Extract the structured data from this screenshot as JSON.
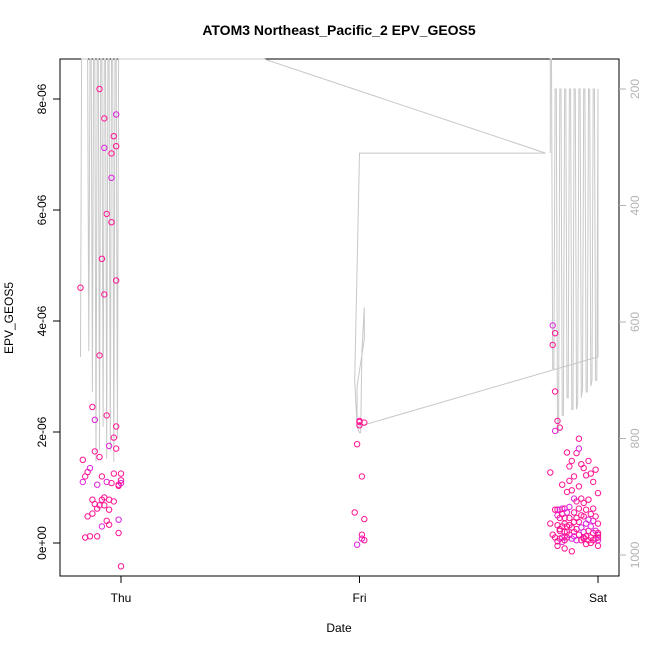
{
  "chart_data": {
    "type": "scatter",
    "title": "ATOM3 Northeast_Pacific_2 EPV_GEOS5",
    "xlabel": "Date",
    "ylabel": "EPV_GEOS5",
    "x_ticks": [
      "Thu",
      "Fri",
      "Sat"
    ],
    "y_ticks": [
      "0e+00",
      "2e-06",
      "4e-06",
      "6e-06",
      "8e-06"
    ],
    "y2_ticks": [
      "200",
      "400",
      "600",
      "800",
      "1000"
    ],
    "ylim": [
      -5.6e-07,
      8.6e-06
    ],
    "y2lim": [
      1020,
      140
    ],
    "y2_reversed": true,
    "grid": false,
    "colors": {
      "points": "#ff1493",
      "points_alt": "#dd22dd",
      "line": "#c8c8c8",
      "axis": "#000000",
      "axis2": "#b3b3b3"
    },
    "points_x_note_unit": "days after Thu 00:00",
    "series": [
      {
        "type": "points",
        "x": [
          -0.17,
          -0.16,
          -0.16,
          -0.15,
          -0.15,
          -0.14,
          -0.14,
          -0.13,
          -0.13,
          -0.12,
          -0.12,
          -0.12,
          -0.11,
          -0.11,
          -0.11,
          -0.1,
          -0.1,
          -0.1,
          -0.09,
          -0.09,
          -0.09,
          -0.09,
          -0.08,
          -0.08,
          -0.08,
          -0.08,
          -0.07,
          -0.07,
          -0.07,
          -0.07,
          -0.07,
          -0.06,
          -0.06,
          -0.06,
          -0.06,
          -0.05,
          -0.05,
          -0.05,
          -0.05,
          -0.04,
          -0.04,
          -0.04,
          -0.04,
          -0.03,
          -0.03,
          -0.03,
          -0.03,
          -0.02,
          -0.02,
          -0.02,
          -0.02,
          -0.02,
          -0.01,
          -0.01,
          -0.01,
          -0.01,
          0.0,
          0.0,
          0.0,
          0.0
        ],
        "y": [
          4.6e-06,
          1.5e-06,
          1.1e-06,
          1.2e-06,
          1e-07,
          4.8e-07,
          1.28e-06,
          1.35e-06,
          1.2e-07,
          2.45e-06,
          5.3e-07,
          7.8e-07,
          2.22e-06,
          7e-07,
          1.65e-06,
          6.2e-07,
          1.2e-07,
          1.05e-06,
          3.38e-06,
          6.8e-07,
          1.55e-06,
          8.18e-06,
          3e-07,
          1.2e-06,
          5.12e-06,
          7.8e-07,
          7.65e-06,
          7.12e-06,
          4.48e-06,
          8.2e-07,
          6.8e-07,
          2.3e-06,
          1.1e-06,
          5.93e-06,
          4e-07,
          6e-07,
          7.8e-07,
          1.75e-06,
          3.3e-07,
          1.08e-06,
          5.78e-06,
          7.02e-06,
          6.58e-06,
          7.33e-06,
          7.5e-07,
          1.9e-06,
          1.25e-06,
          7.72e-06,
          2.1e-06,
          1.7e-06,
          7.15e-06,
          4.73e-06,
          4.2e-07,
          1.03e-06,
          1.8e-07,
          1.05e-06,
          1.25e-06,
          1.08e-06,
          1.13e-06,
          -4.2e-07
        ]
      },
      {
        "type": "points",
        "x": [
          0.98,
          0.99,
          0.99,
          1.0,
          1.0,
          1.0,
          1.01,
          1.01,
          1.01,
          1.02,
          1.02,
          1.02
        ],
        "y": [
          5.5e-07,
          1.78e-06,
          -3e-08,
          2.12e-06,
          2.18e-06,
          2.2e-06,
          1.2e-06,
          8e-08,
          1.5e-07,
          4.3e-07,
          5e-08,
          2.17e-06
        ]
      },
      {
        "type": "points",
        "x": [
          1.8,
          1.8,
          1.81,
          1.81,
          1.81,
          1.82,
          1.82,
          1.82,
          1.82,
          1.82,
          1.83,
          1.83,
          1.83,
          1.83,
          1.83,
          1.83,
          1.84,
          1.84,
          1.84,
          1.84,
          1.84,
          1.84,
          1.85,
          1.85,
          1.85,
          1.85,
          1.85,
          1.85,
          1.86,
          1.86,
          1.86,
          1.86,
          1.86,
          1.86,
          1.86,
          1.87,
          1.87,
          1.87,
          1.87,
          1.87,
          1.87,
          1.88,
          1.88,
          1.88,
          1.88,
          1.88,
          1.88,
          1.89,
          1.89,
          1.89,
          1.89,
          1.89,
          1.9,
          1.9,
          1.9,
          1.9,
          1.9,
          1.9,
          1.91,
          1.91,
          1.91,
          1.91,
          1.91,
          1.92,
          1.92,
          1.92,
          1.92,
          1.92,
          1.92,
          1.93,
          1.93,
          1.93,
          1.93,
          1.93,
          1.94,
          1.94,
          1.94,
          1.94,
          1.94,
          1.94,
          1.95,
          1.95,
          1.95,
          1.95,
          1.95,
          1.96,
          1.96,
          1.96,
          1.96,
          1.96,
          1.97,
          1.97,
          1.97,
          1.97,
          1.97,
          1.98,
          1.98,
          1.98,
          1.98,
          1.98,
          1.99,
          1.99,
          1.99,
          1.99,
          2.0,
          2.0,
          2.0,
          2.0,
          2.0,
          2.0,
          2.0
        ],
        "y": [
          1.27e-06,
          3.5e-07,
          3.92e-06,
          3.57e-06,
          1.5e-07,
          3.78e-06,
          2.73e-06,
          2.02e-06,
          1e-07,
          6e-07,
          2.2e-06,
          3.2e-07,
          5e-07,
          6e-07,
          3e-08,
          -5e-08,
          2.08e-06,
          6e-07,
          4.5e-07,
          2.2e-07,
          8e-08,
          2.5e-07,
          6.2e-07,
          5.2e-07,
          1e-07,
          1.05e-06,
          3e-07,
          2e-08,
          6.2e-07,
          4.5e-07,
          2e-07,
          3.5e-07,
          1.2e-07,
          5e-08,
          -1e-07,
          1.63e-06,
          9.2e-07,
          5.5e-07,
          3e-07,
          2e-07,
          1e-07,
          1.12e-06,
          6.5e-07,
          4.5e-07,
          3.2e-07,
          1.38e-06,
          1.5e-07,
          8e-08,
          9.5e-07,
          1.48e-06,
          2.8e-07,
          -1.5e-07,
          8e-07,
          5.5e-07,
          3.8e-07,
          2e-07,
          1.2e-06,
          1.2e-07,
          1.62e-06,
          7.5e-07,
          4.5e-07,
          2.5e-07,
          5e-08,
          1.88e-06,
          1.02e-06,
          6.2e-07,
          3.8e-07,
          1.7e-06,
          1.5e-07,
          1.42e-06,
          8e-07,
          5e-07,
          2.8e-07,
          5e-08,
          1.35e-06,
          7.2e-07,
          4.8e-07,
          2e-07,
          8e-08,
          1e-07,
          1.22e-06,
          6e-07,
          3.5e-07,
          1.2e-07,
          -2e-08,
          1.48e-06,
          7.8e-07,
          4.2e-07,
          2.2e-07,
          5e-08,
          1.25e-06,
          5.2e-07,
          3e-07,
          1e-07,
          0.0,
          1.1e-06,
          6.2e-07,
          4e-07,
          1.8e-07,
          5e-08,
          1.32e-06,
          4.8e-07,
          2.2e-07,
          8e-08,
          9e-07,
          3.5e-07,
          1.5e-07,
          5e-08,
          -5e-08,
          1.8e-07,
          1e-07
        ]
      },
      {
        "type": "line",
        "axis": "right",
        "x": [
          -0.17,
          -0.165,
          -0.16,
          -0.15,
          -0.14,
          -0.135,
          -0.13,
          -0.125,
          -0.12,
          -0.115,
          -0.11,
          -0.105,
          -0.1,
          -0.095,
          -0.09,
          -0.085,
          -0.08,
          -0.075,
          -0.07,
          -0.065,
          -0.06,
          -0.055,
          -0.05,
          -0.045,
          -0.04,
          -0.035,
          -0.03,
          -0.025,
          -0.02,
          -0.015,
          -0.01,
          -0.005,
          0.0,
          0.6,
          1.78,
          1.0,
          0.98,
          0.99,
          1.0,
          1.005,
          1.01,
          1.02,
          1.02,
          0.99,
          0.99,
          2.0,
          2.0,
          1.995,
          1.99,
          1.985,
          1.98,
          1.975,
          1.97,
          1.965,
          1.96,
          1.955,
          1.95,
          1.945,
          1.94,
          1.935,
          1.93,
          1.925,
          1.92,
          1.915,
          1.91,
          1.905,
          1.9,
          1.895,
          1.89,
          1.885,
          1.88,
          1.875,
          1.87,
          1.865,
          1.86,
          1.855,
          1.85,
          1.845,
          1.84,
          1.835,
          1.83,
          1.825,
          1.82,
          1.815,
          1.81,
          1.805,
          1.8,
          1.8
        ],
        "y": [
          660,
          140,
          140,
          140,
          140,
          650,
          140,
          140,
          720,
          140,
          140,
          840,
          140,
          140,
          820,
          140,
          140,
          780,
          140,
          140,
          835,
          140,
          140,
          820,
          140,
          140,
          840,
          140,
          140,
          800,
          140,
          140,
          140,
          140,
          310,
          310,
          700,
          780,
          790,
          790,
          650,
          575,
          630,
          710,
          780,
          660,
          200,
          700,
          700,
          200,
          200,
          700,
          710,
          200,
          200,
          720,
          720,
          200,
          200,
          715,
          730,
          200,
          200,
          740,
          750,
          200,
          200,
          750,
          750,
          200,
          200,
          730,
          730,
          200,
          200,
          760,
          760,
          200,
          200,
          790,
          790,
          200,
          200,
          680,
          680,
          140,
          140,
          310
        ]
      }
    ]
  }
}
